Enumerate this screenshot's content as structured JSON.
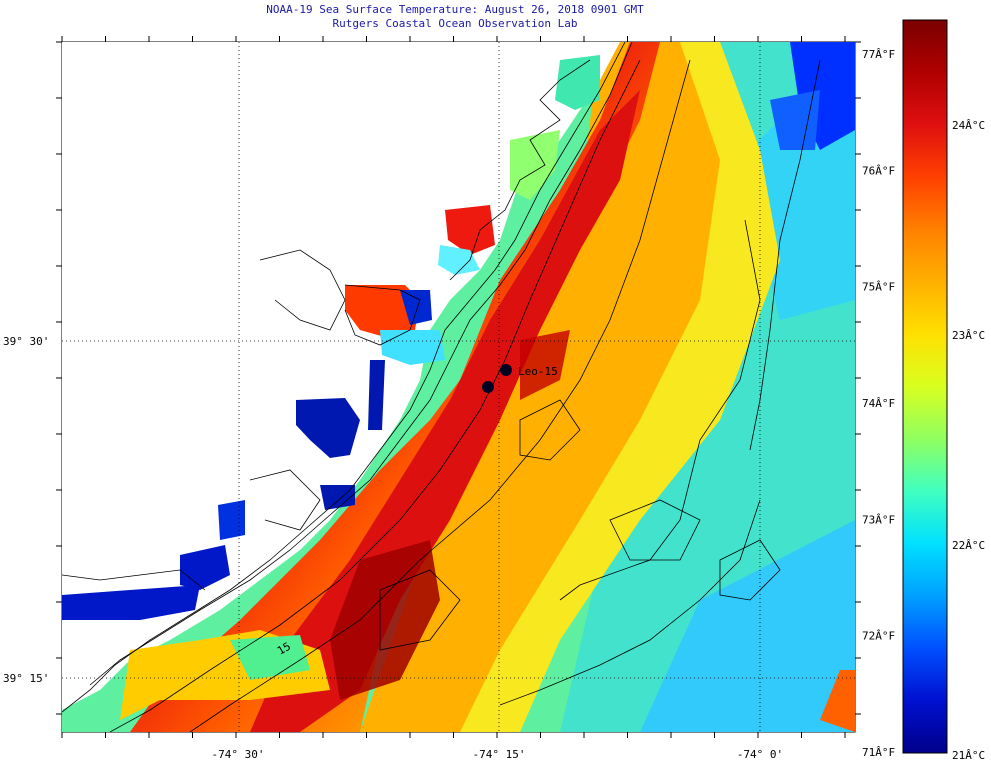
{
  "title": "NOAA-19 Sea Surface Temperature:  August 26, 2018 0901 GMT",
  "subtitle": "Rutgers Coastal Ocean Observation Lab",
  "lat_labels": [
    {
      "text": "39° 30'",
      "lat": 39.5
    },
    {
      "text": "39° 15'",
      "lat": 39.25
    }
  ],
  "lon_labels": [
    {
      "text": "-74° 30'",
      "lon": -74.5
    },
    {
      "text": "-74° 15'",
      "lon": -74.25
    },
    {
      "text": "-74° 0'",
      "lon": -74.0
    }
  ],
  "station": {
    "label": "Leo-15"
  },
  "isobath_label": "15",
  "colorbar": {
    "fahrenheit": [
      "77Â°F",
      "76Â°F",
      "75Â°F",
      "74Â°F",
      "73Â°F",
      "72Â°F",
      "71Â°F"
    ],
    "celsius": [
      "24Â°C",
      "23Â°C",
      "22Â°C",
      "21Â°C"
    ],
    "colors": [
      "#7a0000",
      "#b00000",
      "#e01010",
      "#ff4000",
      "#ff8000",
      "#ffb000",
      "#ffe000",
      "#d8ff20",
      "#90ff60",
      "#40ffc0",
      "#00e0ff",
      "#00a0ff",
      "#0050ff",
      "#0010d0",
      "#00008a"
    ]
  }
}
